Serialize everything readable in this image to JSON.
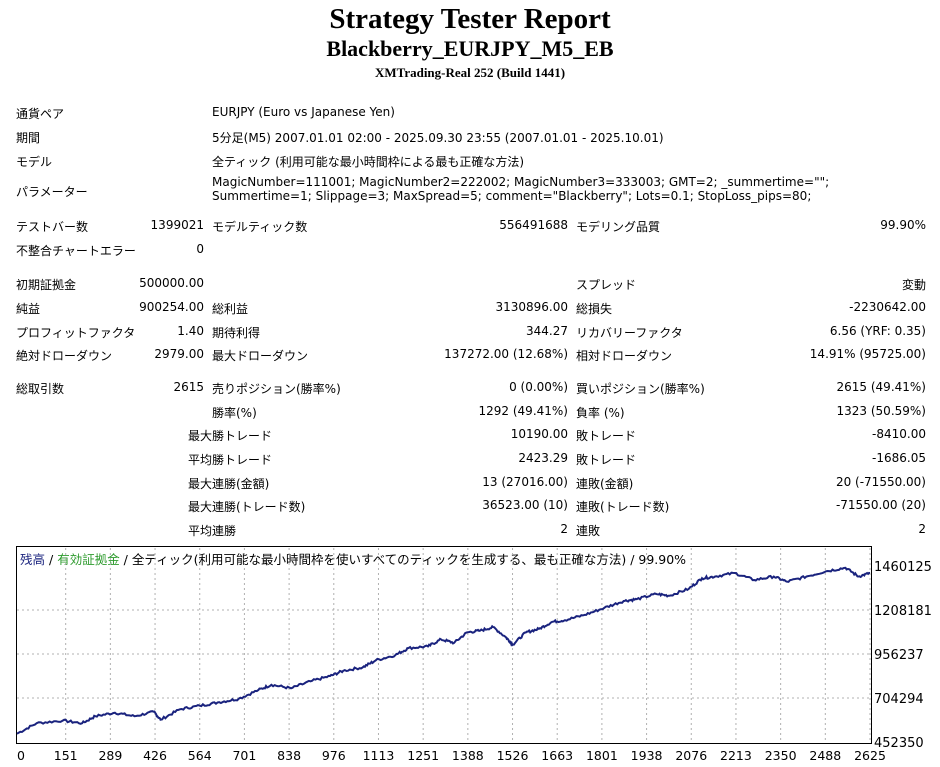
{
  "header": {
    "title": "Strategy Tester Report",
    "subtitle": "Blackberry_EURJPY_M5_EB",
    "server": "XMTrading-Real 252 (Build 1441)"
  },
  "info": [
    {
      "label": "通貨ペア",
      "value": "EURJPY (Euro vs Japanese Yen)"
    },
    {
      "label": "期間",
      "value": "5分足(M5) 2007.01.01 02:00 - 2025.09.30 23:55 (2007.01.01 - 2025.10.01)"
    },
    {
      "label": "モデル",
      "value": "全ティック (利用可能な最小時間枠による最も正確な方法)"
    },
    {
      "label": "パラメーター",
      "value": "MagicNumber=111001; MagicNumber2=222002; MagicNumber3=333003; GMT=2; _summertime=\"\"; Summertime=1; Slippage=3; MaxSpread=5; comment=\"Blackberry\"; Lots=0.1; StopLoss_pips=80;"
    }
  ],
  "stats": {
    "test_bars_label": "テストバー数",
    "test_bars": "1399021",
    "model_ticks_label": "モデルティック数",
    "model_ticks": "556491688",
    "model_quality_label": "モデリング品質",
    "model_quality": "99.90%",
    "mismatch_label": "不整合チャートエラー",
    "mismatch": "0",
    "initial_deposit_label": "初期証拠金",
    "initial_deposit": "500000.00",
    "spread_label": "スプレッド",
    "spread": "変動",
    "net_profit_label": "純益",
    "net_profit": "900254.00",
    "gross_profit_label": "総利益",
    "gross_profit": "3130896.00",
    "gross_loss_label": "総損失",
    "gross_loss": "-2230642.00",
    "profit_factor_label": "プロフィットファクタ",
    "profit_factor": "1.40",
    "expected_payoff_label": "期待利得",
    "expected_payoff": "344.27",
    "recovery_factor_label": "リカバリーファクタ",
    "recovery_factor": "6.56 (YRF: 0.35)",
    "abs_dd_label": "絶対ドローダウン",
    "abs_dd": "2979.00",
    "max_dd_label": "最大ドローダウン",
    "max_dd": "137272.00 (12.68%)",
    "rel_dd_label": "相対ドローダウン",
    "rel_dd": "14.91% (95725.00)",
    "total_trades_label": "総取引数",
    "total_trades": "2615",
    "short_label": "売りポジション(勝率%)",
    "short": "0 (0.00%)",
    "long_label": "買いポジション(勝率%)",
    "long": "2615 (49.41%)",
    "win_rate_label": "勝率(%)",
    "win_rate": "1292 (49.41%)",
    "loss_rate_label": "負率 (%)",
    "loss_rate": "1323 (50.59%)",
    "largest_prefix": "最大",
    "average_prefix": "平均",
    "largest_win_label": "勝トレード",
    "largest_win": "10190.00",
    "largest_loss_label": "敗トレード",
    "largest_loss": "-8410.00",
    "avg_win_label": "勝トレード",
    "avg_win": "2423.29",
    "avg_loss_label": "敗トレード",
    "avg_loss": "-1686.05",
    "max_consec_wins_label": "連勝(金額)",
    "max_consec_wins": "13 (27016.00)",
    "max_consec_losses_label": "連敗(金額)",
    "max_consec_losses": "20 (-71550.00)",
    "max_consec_profit_label": "連勝(トレード数)",
    "max_consec_profit": "36523.00 (10)",
    "max_consec_loss_label": "連敗(トレード数)",
    "max_consec_loss": "-71550.00 (20)",
    "avg_consec_wins_label": "連勝",
    "avg_consec_wins": "2",
    "avg_consec_losses_label": "連敗",
    "avg_consec_losses": "2"
  },
  "chart_legend": {
    "balance": "残高",
    "sep1": " / ",
    "equity": "有効証拠金",
    "rest": " / 全ティック(利用可能な最小時間枠を使いすべてのティックを生成する、最も正確な方法) / 99.90%"
  },
  "colors": {
    "balance_line": "#1a237e",
    "equity_text": "#2e9b2e",
    "grid": "#b0b0b0"
  },
  "chart_data": {
    "type": "line",
    "x_ticks": [
      "0",
      "151",
      "289",
      "426",
      "564",
      "701",
      "838",
      "976",
      "1113",
      "1251",
      "1388",
      "1526",
      "1663",
      "1801",
      "1938",
      "2076",
      "2213",
      "2350",
      "2488",
      "2625"
    ],
    "y_ticks": [
      "1460125",
      "1208181",
      "956237",
      "704294",
      "452350"
    ],
    "xlim": [
      0,
      2615
    ],
    "ylim": [
      452350,
      1460125
    ],
    "series": [
      {
        "x": [
          0,
          60,
          140,
          200,
          240,
          300,
          360,
          420,
          440,
          500,
          560,
          620,
          680,
          740,
          780,
          840,
          900,
          960,
          1000,
          1060,
          1100,
          1160,
          1200,
          1260,
          1300,
          1340,
          1380,
          1420,
          1460,
          1500,
          1520,
          1560,
          1600,
          1640,
          1680,
          1740,
          1800,
          1860,
          1900,
          1960,
          2000,
          2060,
          2100,
          2140,
          2200,
          2260,
          2320,
          2360,
          2420,
          2480,
          2540,
          2580,
          2615
        ],
        "y": [
          500000,
          560000,
          575000,
          560000,
          600000,
          620000,
          600000,
          625000,
          580000,
          640000,
          660000,
          680000,
          700000,
          750000,
          780000,
          760000,
          800000,
          830000,
          860000,
          880000,
          920000,
          950000,
          990000,
          1000000,
          1040000,
          1020000,
          1080000,
          1090000,
          1110000,
          1050000,
          1010000,
          1080000,
          1100000,
          1140000,
          1150000,
          1180000,
          1220000,
          1260000,
          1270000,
          1300000,
          1290000,
          1330000,
          1390000,
          1400000,
          1420000,
          1380000,
          1400000,
          1370000,
          1400000,
          1430000,
          1450000,
          1400000,
          1420000
        ]
      }
    ]
  }
}
